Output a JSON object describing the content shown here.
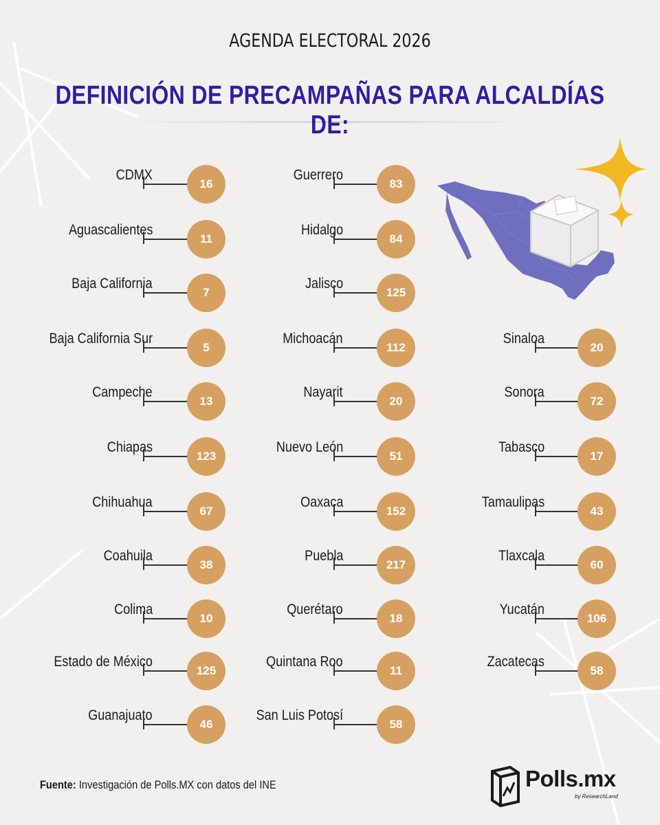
{
  "header": {
    "kicker": "AGENDA ELECTORAL 2026",
    "title": "DEFINICIÓN DE PRECAMPAÑAS PARA ALCALDÍAS DE:"
  },
  "states": [
    {
      "name": "CDMX",
      "value": "16"
    },
    {
      "name": "Aguascalientes",
      "value": "11"
    },
    {
      "name": "Baja California",
      "value": "7"
    },
    {
      "name": "Baja California Sur",
      "value": "5"
    },
    {
      "name": "Campeche",
      "value": "13"
    },
    {
      "name": "Chiapas",
      "value": "123"
    },
    {
      "name": "Chihuahua",
      "value": "67"
    },
    {
      "name": "Coahuila",
      "value": "38"
    },
    {
      "name": "Colima",
      "value": "10"
    },
    {
      "name": "Estado de México",
      "value": "125"
    },
    {
      "name": "Guanajuato",
      "value": "46"
    },
    {
      "name": "Guerrero",
      "value": "83"
    },
    {
      "name": "Hidalgo",
      "value": "84"
    },
    {
      "name": "Jalisco",
      "value": "125"
    },
    {
      "name": "Michoacán",
      "value": "112"
    },
    {
      "name": "Nayarit",
      "value": "20"
    },
    {
      "name": "Nuevo León",
      "value": "51"
    },
    {
      "name": "Oaxaca",
      "value": "152"
    },
    {
      "name": "Puebla",
      "value": "217"
    },
    {
      "name": "Querétaro",
      "value": "18"
    },
    {
      "name": "Quintana Roo",
      "value": "11"
    },
    {
      "name": "San Luis Potosí",
      "value": "58"
    },
    {
      "name": "Sinaloa",
      "value": "20"
    },
    {
      "name": "Sonora",
      "value": "72"
    },
    {
      "name": "Tabasco",
      "value": "17"
    },
    {
      "name": "Tamaulipas",
      "value": "43"
    },
    {
      "name": "Tlaxcala",
      "value": "60"
    },
    {
      "name": "Yucatán",
      "value": "106"
    },
    {
      "name": "Zacatecas",
      "value": "58"
    }
  ],
  "footer": {
    "source_label": "Fuente:",
    "source_text": " Investigación de Polls.MX con datos del INE"
  },
  "brand": {
    "name": "Polls.mx",
    "tagline": "by ResearchLand",
    "logo_icon": "chart-box-icon"
  },
  "illustration": {
    "map_icon": "mexico-map-icon",
    "ballot_icon": "ballot-box-icon",
    "sparkle_icon": "sparkle-icon"
  },
  "colors": {
    "title": "#2d1fa3",
    "badge": "#d6a061",
    "map": "#6f6fbf",
    "sparkle": "#f2b824",
    "background": "#f1f0ee"
  }
}
